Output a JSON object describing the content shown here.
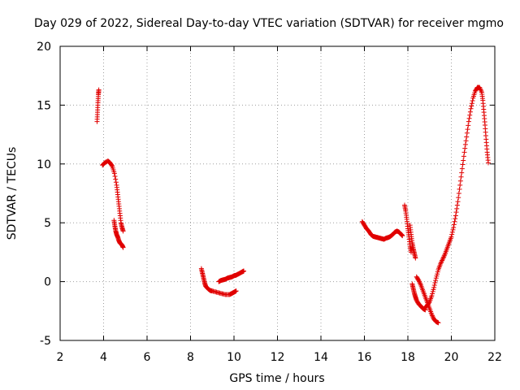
{
  "chart_data": {
    "type": "scatter",
    "title": "Day 029 of 2022, Sidereal Day-to-day VTEC variation (SDTVAR) for receiver mgmo",
    "xlabel": "GPS time / hours",
    "ylabel": "SDTVAR / TECUs",
    "xlim": [
      2,
      22
    ],
    "ylim": [
      -5,
      20
    ],
    "xticks": [
      2,
      4,
      6,
      8,
      10,
      12,
      14,
      16,
      18,
      20,
      22
    ],
    "yticks": [
      -5,
      0,
      5,
      10,
      15,
      20
    ],
    "grid": true,
    "marker": "plus",
    "color": "#e00000",
    "series": [
      {
        "name": "SDTVAR",
        "segments": [
          [
            [
              3.7,
              13.6
            ],
            [
              3.72,
              14.4
            ],
            [
              3.74,
              15.2
            ],
            [
              3.76,
              15.9
            ],
            [
              3.78,
              16.3
            ]
          ],
          [
            [
              3.95,
              9.9
            ],
            [
              4.05,
              10.1
            ],
            [
              4.2,
              10.25
            ],
            [
              4.3,
              10.1
            ],
            [
              4.4,
              9.8
            ],
            [
              4.5,
              9.2
            ],
            [
              4.6,
              8.2
            ],
            [
              4.65,
              7.4
            ],
            [
              4.7,
              6.6
            ],
            [
              4.75,
              5.8
            ],
            [
              4.8,
              5.0
            ],
            [
              4.85,
              4.6
            ],
            [
              4.9,
              4.3
            ]
          ],
          [
            [
              4.48,
              5.2
            ],
            [
              4.52,
              4.7
            ],
            [
              4.56,
              4.3
            ],
            [
              4.6,
              4.0
            ],
            [
              4.65,
              3.8
            ],
            [
              4.7,
              3.5
            ],
            [
              4.75,
              3.3
            ],
            [
              4.8,
              3.2
            ],
            [
              4.85,
              3.1
            ],
            [
              4.9,
              2.9
            ]
          ],
          [
            [
              8.5,
              1.1
            ],
            [
              8.55,
              0.7
            ],
            [
              8.6,
              0.3
            ],
            [
              8.65,
              -0.1
            ],
            [
              8.7,
              -0.4
            ],
            [
              8.8,
              -0.6
            ],
            [
              8.9,
              -0.75
            ],
            [
              9.0,
              -0.8
            ],
            [
              9.2,
              -0.9
            ],
            [
              9.4,
              -1.0
            ],
            [
              9.6,
              -1.1
            ],
            [
              9.8,
              -1.1
            ],
            [
              9.9,
              -1.0
            ],
            [
              10.0,
              -0.9
            ],
            [
              10.1,
              -0.8
            ]
          ],
          [
            [
              9.3,
              0.0
            ],
            [
              9.4,
              0.1
            ],
            [
              9.5,
              0.15
            ],
            [
              9.6,
              0.2
            ],
            [
              9.7,
              0.3
            ],
            [
              9.8,
              0.35
            ],
            [
              9.9,
              0.4
            ],
            [
              10.0,
              0.5
            ],
            [
              10.1,
              0.55
            ],
            [
              10.2,
              0.65
            ],
            [
              10.3,
              0.75
            ],
            [
              10.4,
              0.85
            ],
            [
              10.45,
              0.9
            ]
          ],
          [
            [
              15.9,
              5.1
            ],
            [
              16.0,
              4.8
            ],
            [
              16.1,
              4.5
            ],
            [
              16.2,
              4.3
            ],
            [
              16.3,
              4.0
            ],
            [
              16.4,
              3.85
            ],
            [
              16.5,
              3.8
            ],
            [
              16.6,
              3.75
            ],
            [
              16.7,
              3.7
            ],
            [
              16.8,
              3.65
            ],
            [
              16.9,
              3.6
            ],
            [
              17.0,
              3.7
            ],
            [
              17.1,
              3.75
            ],
            [
              17.2,
              3.85
            ],
            [
              17.3,
              4.0
            ],
            [
              17.4,
              4.2
            ],
            [
              17.5,
              4.3
            ],
            [
              17.6,
              4.2
            ],
            [
              17.7,
              4.0
            ],
            [
              17.75,
              3.9
            ]
          ],
          [
            [
              17.85,
              6.5
            ],
            [
              17.9,
              6.0
            ],
            [
              17.95,
              5.3
            ],
            [
              18.0,
              4.5
            ],
            [
              18.05,
              3.8
            ],
            [
              18.1,
              3.0
            ],
            [
              18.15,
              2.5
            ]
          ],
          [
            [
              18.1,
              4.8
            ],
            [
              18.15,
              4.0
            ],
            [
              18.2,
              3.3
            ],
            [
              18.25,
              2.8
            ],
            [
              18.3,
              2.4
            ],
            [
              18.35,
              2.0
            ]
          ],
          [
            [
              18.2,
              -0.2
            ],
            [
              18.25,
              -0.6
            ],
            [
              18.3,
              -1.0
            ],
            [
              18.35,
              -1.3
            ],
            [
              18.4,
              -1.6
            ],
            [
              18.5,
              -1.9
            ],
            [
              18.6,
              -2.1
            ],
            [
              18.7,
              -2.3
            ],
            [
              18.8,
              -2.4
            ]
          ],
          [
            [
              18.4,
              0.4
            ],
            [
              18.5,
              0.1
            ],
            [
              18.6,
              -0.3
            ],
            [
              18.7,
              -0.8
            ],
            [
              18.8,
              -1.3
            ],
            [
              18.9,
              -1.8
            ],
            [
              19.0,
              -2.3
            ],
            [
              19.1,
              -2.8
            ],
            [
              19.2,
              -3.2
            ],
            [
              19.3,
              -3.4
            ],
            [
              19.4,
              -3.5
            ]
          ],
          [
            [
              18.8,
              -2.2
            ],
            [
              18.9,
              -2.0
            ],
            [
              19.0,
              -1.7
            ],
            [
              19.1,
              -1.2
            ],
            [
              19.2,
              -0.5
            ],
            [
              19.3,
              0.3
            ],
            [
              19.4,
              1.0
            ],
            [
              19.5,
              1.5
            ],
            [
              19.6,
              1.9
            ],
            [
              19.7,
              2.3
            ],
            [
              19.8,
              2.8
            ],
            [
              19.9,
              3.3
            ],
            [
              20.0,
              3.8
            ],
            [
              20.1,
              4.6
            ],
            [
              20.2,
              5.6
            ],
            [
              20.3,
              6.8
            ],
            [
              20.4,
              8.2
            ],
            [
              20.5,
              9.6
            ],
            [
              20.6,
              11.0
            ],
            [
              20.7,
              12.3
            ],
            [
              20.8,
              13.6
            ],
            [
              20.9,
              14.7
            ],
            [
              21.0,
              15.6
            ],
            [
              21.1,
              16.2
            ],
            [
              21.2,
              16.5
            ],
            [
              21.3,
              16.5
            ],
            [
              21.4,
              16.1
            ],
            [
              21.45,
              15.4
            ],
            [
              21.5,
              14.4
            ],
            [
              21.55,
              13.3
            ],
            [
              21.6,
              12.1
            ],
            [
              21.65,
              11.0
            ],
            [
              21.7,
              10.1
            ]
          ]
        ]
      }
    ]
  }
}
